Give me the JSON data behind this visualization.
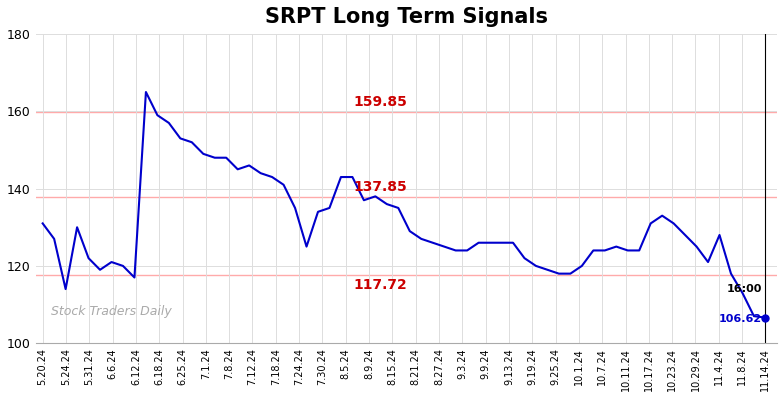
{
  "title": "SRPT Long Term Signals",
  "title_fontsize": 15,
  "title_fontweight": "bold",
  "background_color": "#ffffff",
  "plot_bg_color": "#ffffff",
  "line_color": "#0000cc",
  "line_width": 1.5,
  "watermark": "Stock Traders Daily",
  "watermark_color": "#aaaaaa",
  "hlines": [
    159.85,
    137.85,
    117.72
  ],
  "hline_color": "#ffaaaa",
  "hline_labels_color": "#cc0000",
  "hline_label_fontsize": 10,
  "hline_label_fontweight": "bold",
  "ylim": [
    100,
    180
  ],
  "yticks": [
    100,
    120,
    140,
    160,
    180
  ],
  "endpoint_value": 106.62,
  "endpoint_color": "#0000cc",
  "grid_color": "#dddddd",
  "x_labels": [
    "5.20.24",
    "5.24.24",
    "5.31.24",
    "6.6.24",
    "6.12.24",
    "6.18.24",
    "6.25.24",
    "7.1.24",
    "7.8.24",
    "7.12.24",
    "7.18.24",
    "7.24.24",
    "7.30.24",
    "8.5.24",
    "8.9.24",
    "8.15.24",
    "8.21.24",
    "8.27.24",
    "9.3.24",
    "9.9.24",
    "9.13.24",
    "9.19.24",
    "9.25.24",
    "10.1.24",
    "10.7.24",
    "10.11.24",
    "10.17.24",
    "10.23.24",
    "10.29.24",
    "11.4.24",
    "11.8.24",
    "11.14.24"
  ],
  "y_values": [
    131,
    127,
    114,
    130,
    122,
    119,
    121,
    120,
    117,
    165,
    159,
    157,
    153,
    152,
    149,
    148,
    148,
    145,
    146,
    144,
    143,
    141,
    135,
    125,
    134,
    135,
    143,
    143,
    137,
    138,
    136,
    135,
    129,
    127,
    126,
    125,
    124,
    124,
    126,
    126,
    126,
    126,
    122,
    120,
    119,
    118,
    118,
    120,
    124,
    124,
    125,
    124,
    124,
    131,
    133,
    131,
    128,
    125,
    121,
    128,
    118,
    113,
    107,
    106.62
  ]
}
